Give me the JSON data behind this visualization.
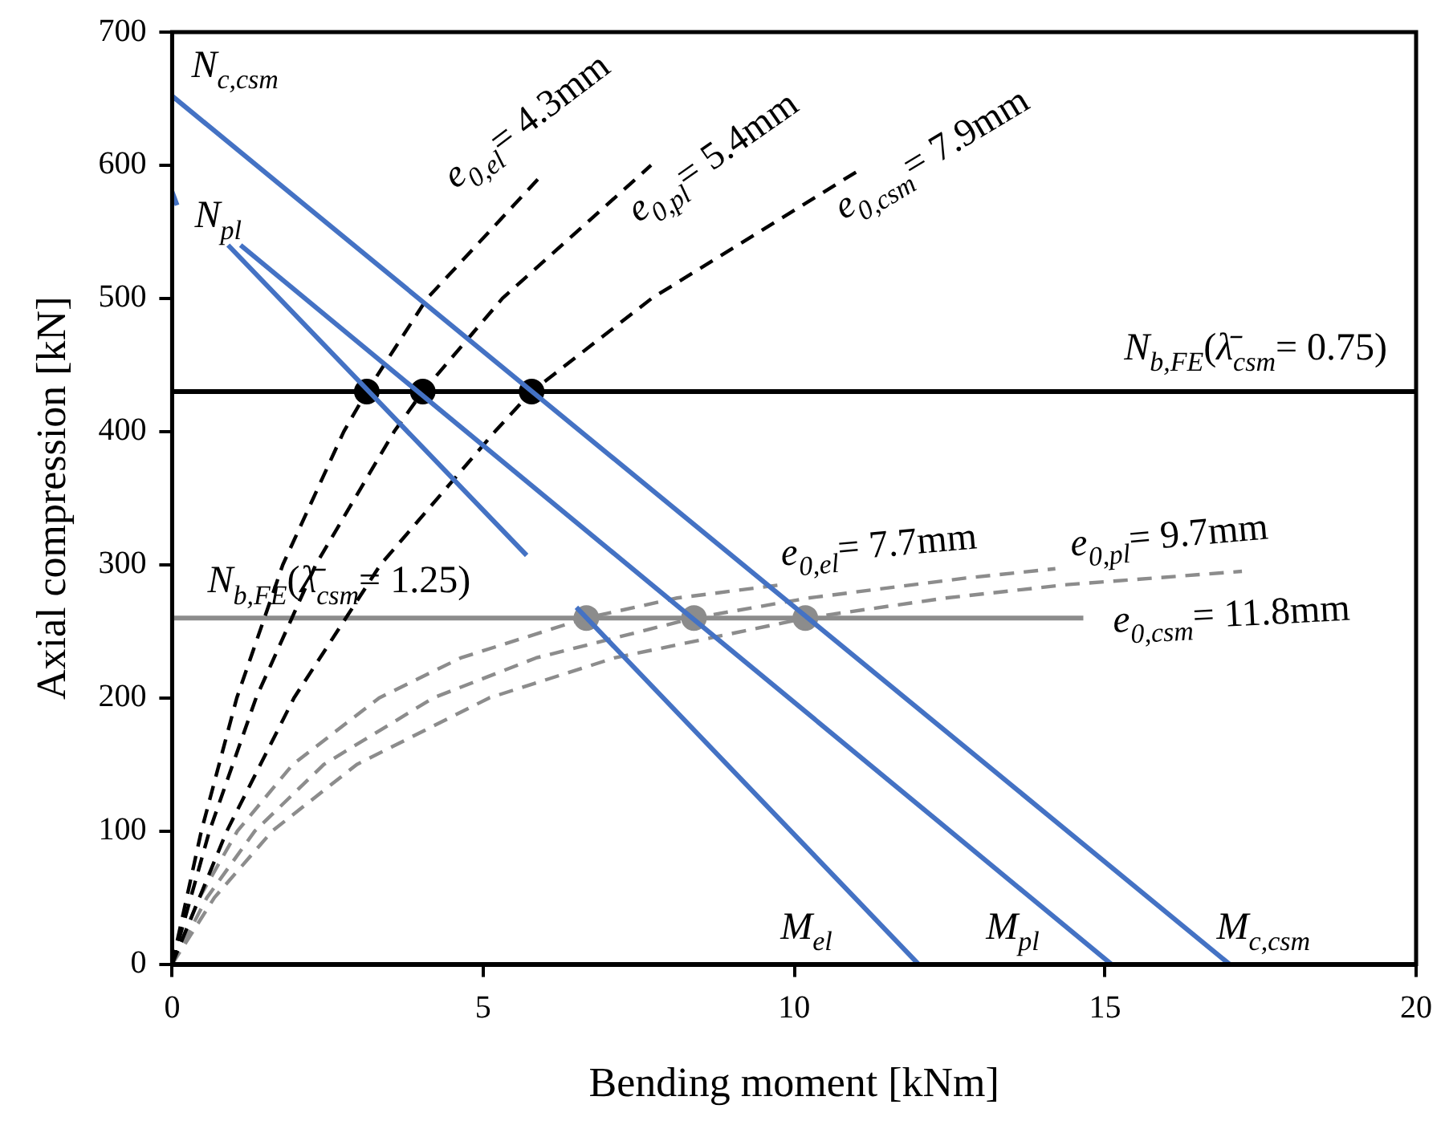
{
  "chart_data": {
    "type": "line",
    "xlabel": "Bending moment [kNm]",
    "ylabel": "Axial compression [kN]",
    "xlim": [
      0,
      20
    ],
    "xticks": [
      0,
      5,
      10,
      15,
      20
    ],
    "ylim": [
      0,
      700
    ],
    "yticks": [
      0,
      100,
      200,
      300,
      400,
      500,
      600,
      700
    ],
    "grid": false,
    "legend": false,
    "marker": "none",
    "line_style": "solid",
    "series": [
      {
        "type": "line",
        "color": "#4472c4",
        "x": [
          0,
          17
        ],
        "values": [
          652,
          0
        ]
      },
      {
        "type": "line",
        "color": "#4472c4",
        "x": [
          1.1,
          15.1
        ],
        "values": [
          540,
          0
        ]
      },
      {
        "type": "line",
        "color": "#4472c4",
        "x": [
          0.9,
          5.7,
          6.1,
          6.5,
          12
        ],
        "values": [
          540,
          307,
          null,
          268,
          0
        ]
      },
      {
        "type": "line",
        "color": "#4472c4",
        "x": [
          0,
          0.08
        ],
        "values": [
          580,
          570
        ]
      },
      {
        "type": "line",
        "color": "#000000",
        "line_style": "dashed",
        "x": [
          0,
          0.47,
          1.04,
          1.78,
          2.76,
          3.13,
          4.1,
          5.97
        ],
        "values": [
          0,
          100,
          200,
          300,
          400,
          430,
          500,
          594
        ]
      },
      {
        "type": "line",
        "color": "#000000",
        "line_style": "dashed",
        "x": [
          0,
          0.6,
          1.35,
          2.31,
          3.57,
          4.03,
          5.31,
          7.7
        ],
        "values": [
          0,
          100,
          200,
          300,
          400,
          430,
          500,
          600
        ]
      },
      {
        "type": "line",
        "color": "#000000",
        "line_style": "dashed",
        "x": [
          0,
          0.88,
          1.96,
          3.35,
          5.19,
          5.78,
          7.71,
          11.0
        ],
        "values": [
          0,
          100,
          200,
          300,
          400,
          430,
          500,
          595
        ]
      },
      {
        "type": "line",
        "color": "#8c8c8c",
        "line_style": "dashed",
        "x": [
          0,
          0.44,
          1.05,
          1.94,
          3.33,
          4.64,
          6.66,
          8.12,
          9.8
        ],
        "values": [
          0,
          50,
          100,
          150,
          200,
          230,
          260,
          275,
          285
        ]
      },
      {
        "type": "line",
        "color": "#8c8c8c",
        "line_style": "dashed",
        "x": [
          0,
          0.56,
          1.33,
          2.44,
          4.2,
          5.85,
          8.39,
          10.23,
          12.76,
          14.2
        ],
        "values": [
          0,
          50,
          100,
          150,
          200,
          230,
          260,
          275,
          290,
          297
        ]
      },
      {
        "type": "line",
        "color": "#8c8c8c",
        "line_style": "dashed",
        "x": [
          0,
          0.68,
          1.61,
          2.97,
          5.1,
          7.11,
          10.2,
          12.44,
          14.38,
          17.2
        ],
        "values": [
          0,
          50,
          100,
          150,
          200,
          230,
          260,
          275,
          285,
          295
        ]
      },
      {
        "type": "line",
        "color": "#8c8c8c",
        "x": [
          0,
          14.65
        ],
        "values": [
          260,
          260
        ]
      },
      {
        "type": "line",
        "color": "#000000",
        "x": [
          0,
          20
        ],
        "values": [
          430,
          430
        ]
      },
      {
        "type": "scatter",
        "color": "#000000",
        "marker": "circle",
        "x": [
          3.13,
          4.03,
          5.78
        ],
        "values": [
          430,
          430,
          430
        ]
      },
      {
        "type": "scatter",
        "color": "#8c8c8c",
        "marker": "circle",
        "x": [
          6.66,
          8.39,
          10.18
        ],
        "values": [
          260,
          260,
          260
        ]
      }
    ],
    "annotations": [
      {
        "text": "N$_{b,FE}$(λ̄$_{csm}$= 0.75)",
        "x": 20,
        "y": 430
      },
      {
        "text": "N$_{c,csm}$",
        "x": 0,
        "y": 652
      },
      {
        "text": "N$_{pl}$",
        "x": 0,
        "y": 580
      },
      {
        "text": "e$_{0,el}$= 4.3mm",
        "x": 5.97,
        "y": 594
      },
      {
        "text": "e$_{0,pl}$= 5.4mm",
        "x": 7.7,
        "y": 600
      },
      {
        "text": "e$_{0,csm}$= 7.9mm",
        "x": 11.0,
        "y": 595
      },
      {
        "text": "e$_{0,el}$= 7.7mm",
        "x": 9.8,
        "y": 285
      },
      {
        "text": "e$_{0,pl}$= 9.7mm",
        "x": 14.2,
        "y": 297
      },
      {
        "text": "e$_{0,csm}$= 11.8mm",
        "x": 17.2,
        "y": 295
      },
      {
        "text": "N$_{b,FE}$(λ̄$_{csm}$= 1.25)",
        "x": 0,
        "y": 260
      },
      {
        "text": "M$_{el}$",
        "x": 12,
        "y": 0
      },
      {
        "text": "M$_{pl}$",
        "x": 15.1,
        "y": 0
      },
      {
        "text": "M$_{c,csm}$",
        "x": 17,
        "y": 0
      }
    ]
  }
}
